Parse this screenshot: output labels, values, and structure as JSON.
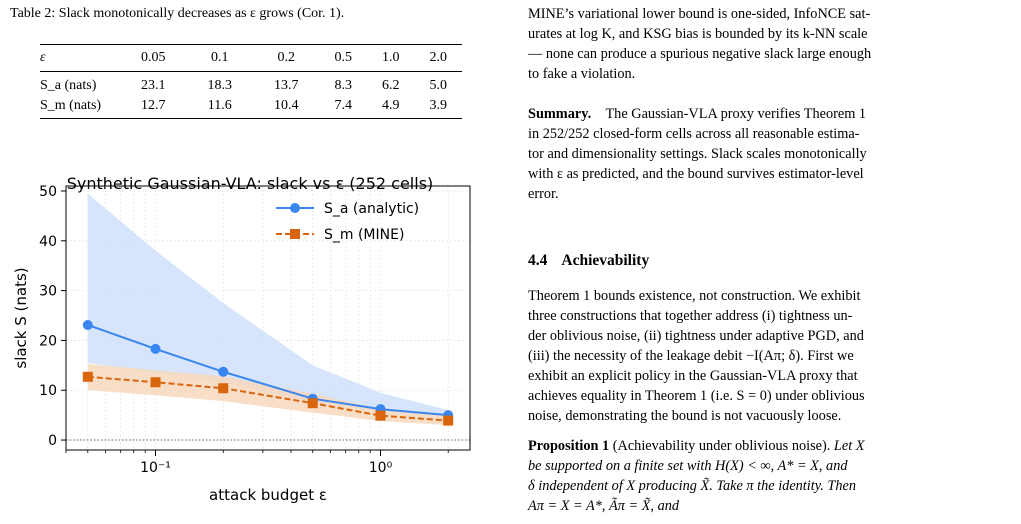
{
  "left": {
    "table": {
      "caption": "Table 2: Slack monotonically decreases as ε grows (Cor. 1).",
      "header": [
        "ε",
        "0.05",
        "0.1",
        "0.2",
        "0.5",
        "1.0",
        "2.0"
      ],
      "rows": [
        {
          "label": "S_a (nats)",
          "values": [
            "23.1",
            "18.3",
            "13.7",
            "8.3",
            "6.2",
            "5.0"
          ]
        },
        {
          "label": "S_m (nats)",
          "values": [
            "12.7",
            "11.6",
            "10.4",
            "7.4",
            "4.9",
            "3.9"
          ]
        }
      ]
    }
  },
  "chart_data": {
    "type": "line",
    "title": "Synthetic Gaussian-VLA: slack vs ε (252 cells)",
    "xlabel": "attack budget ε",
    "ylabel": "slack S (nats)",
    "xscale": "log",
    "xlim": [
      0.04,
      2.5
    ],
    "ylim": [
      -2,
      51
    ],
    "yticks": [
      0,
      10,
      20,
      30,
      40,
      50
    ],
    "xticks": [
      {
        "value": 0.1,
        "label": "10⁻¹"
      },
      {
        "value": 1,
        "label": "10⁰"
      }
    ],
    "grid": true,
    "legend_position": "top-right",
    "reference_line": {
      "y": 0,
      "style": "dotted"
    },
    "x": [
      0.05,
      0.1,
      0.2,
      0.5,
      1.0,
      2.0
    ],
    "series": [
      {
        "name": "S_a (analytic)",
        "values": [
          23.1,
          18.3,
          13.7,
          8.3,
          6.2,
          5.0
        ],
        "band_low": [
          15.5,
          13.5,
          11.5,
          7.5,
          5.8,
          4.8
        ],
        "band_high": [
          49.5,
          38.0,
          27.5,
          15.0,
          9.5,
          6.0
        ],
        "color": "#3a86f0",
        "band_color": "#cfe0fb",
        "marker": "circle",
        "linestyle": "solid"
      },
      {
        "name": "S_m (MINE)",
        "values": [
          12.7,
          11.6,
          10.4,
          7.4,
          4.9,
          3.9
        ],
        "band_low": [
          10.0,
          9.0,
          7.8,
          5.5,
          3.8,
          3.0
        ],
        "band_high": [
          15.3,
          14.0,
          12.8,
          9.3,
          6.2,
          4.9
        ],
        "color": "#d9650e",
        "band_color": "#f7d8bd",
        "marker": "square",
        "linestyle": "dashed"
      }
    ]
  },
  "right": {
    "intro_lines": [
      "MINE’s variational lower bound is one-sided, InfoNCE sat-",
      "urates at log K, and KSG bias is bounded by its k-NN scale",
      "— none can produce a spurious negative slack large enough",
      "to fake a violation."
    ],
    "summary_label": "Summary.",
    "summary_lines": [
      "The Gaussian-VLA proxy verifies Theorem 1",
      "in 252/252 closed-form cells across all reasonable estima-",
      "tor and dimensionality settings. Slack scales monotonically",
      "with ε as predicted, and the bound survives estimator-level",
      "error."
    ],
    "section_number": "4.4",
    "section_title": "Achievability",
    "body_lines": [
      "Theorem 1 bounds existence, not construction. We exhibit",
      "three constructions that together address (i) tightness un-",
      "der oblivious noise, (ii) tightness under adaptive PGD, and",
      "(iii) the necessity of the leakage debit −I(Aπ; δ). First we",
      "exhibit an explicit policy in the Gaussian-VLA proxy that",
      "achieves equality in Theorem 1 (i.e. S = 0) under oblivious",
      "noise, demonstrating the bound is not vacuously loose."
    ],
    "prop_label": "Proposition 1",
    "prop_title": "(Achievability under oblivious noise).",
    "prop_lines": [
      "Let X",
      "be supported on a finite set with H(X) < ∞, A* = X, and",
      "δ independent of X producing X̃. Take π the identity. Then",
      "Aπ = X = A*, Ãπ = X̃, and"
    ]
  }
}
